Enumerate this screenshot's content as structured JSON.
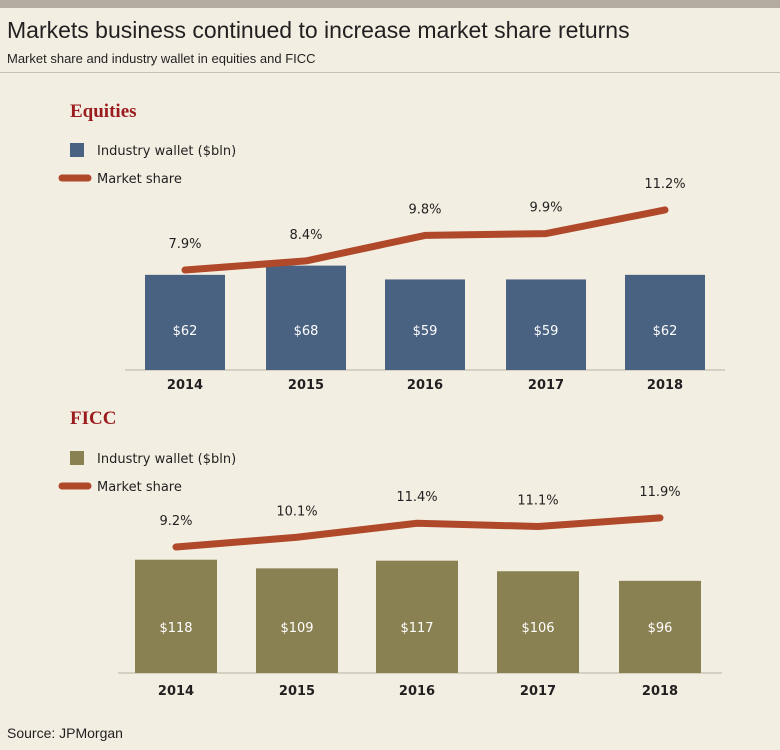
{
  "title": "Markets business continued to increase market share returns",
  "subtitle": "Market share and industry wallet in equities and FICC",
  "source": "Source: JPMorgan",
  "colors": {
    "background": "#f3eee2",
    "equities_bar": "#4a6282",
    "ficc_bar": "#8a8152",
    "line": "#b0482a",
    "section_title": "#9b1c1f"
  },
  "chart_data": [
    {
      "type": "bar",
      "title": "Equities",
      "categories": [
        "2014",
        "2015",
        "2016",
        "2017",
        "2018"
      ],
      "series": [
        {
          "name": "Industry wallet ($bln)",
          "values": [
            62,
            68,
            59,
            59,
            62
          ],
          "labels": [
            "$62",
            "$68",
            "$59",
            "$59",
            "$62"
          ]
        },
        {
          "name": "Market share",
          "type": "line",
          "values": [
            7.9,
            8.4,
            9.8,
            9.9,
            11.2
          ],
          "labels": [
            "7.9%",
            "8.4%",
            "9.8%",
            "9.9%",
            "11.2%"
          ]
        }
      ]
    },
    {
      "type": "bar",
      "title": "FICC",
      "categories": [
        "2014",
        "2015",
        "2016",
        "2017",
        "2018"
      ],
      "series": [
        {
          "name": "Industry wallet ($bln)",
          "values": [
            118,
            109,
            117,
            106,
            96
          ],
          "labels": [
            "$118",
            "$109",
            "$117",
            "$106",
            "$96"
          ]
        },
        {
          "name": "Market share",
          "type": "line",
          "values": [
            9.2,
            10.1,
            11.4,
            11.1,
            11.9
          ],
          "labels": [
            "9.2%",
            "10.1%",
            "11.4%",
            "11.1%",
            "11.9%"
          ]
        }
      ]
    }
  ]
}
